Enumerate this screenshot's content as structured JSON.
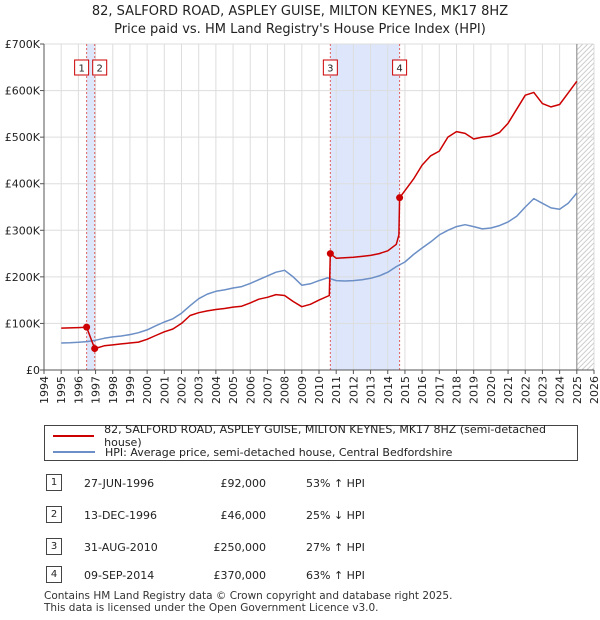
{
  "header": {
    "title": "82, SALFORD ROAD, ASPLEY GUISE, MILTON KEYNES, MK17 8HZ",
    "subtitle": "Price paid vs. HM Land Registry's House Price Index (HPI)"
  },
  "chart_data": {
    "type": "line",
    "title": "82, SALFORD ROAD, ASPLEY GUISE, MILTON KEYNES, MK17 8HZ",
    "subtitle": "Price paid vs. HM Land Registry's House Price Index (HPI)",
    "xlabel": "",
    "ylabel": "",
    "xlim": [
      1994,
      2026
    ],
    "ylim": [
      0,
      700000
    ],
    "y_ticks": [
      0,
      100000,
      200000,
      300000,
      400000,
      500000,
      600000,
      700000
    ],
    "y_tick_labels": [
      "£0",
      "£100K",
      "£200K",
      "£300K",
      "£400K",
      "£500K",
      "£600K",
      "£700K"
    ],
    "x_ticks": [
      1994,
      1995,
      1996,
      1997,
      1998,
      1999,
      2000,
      2001,
      2002,
      2003,
      2004,
      2005,
      2006,
      2007,
      2008,
      2009,
      2010,
      2011,
      2012,
      2013,
      2014,
      2015,
      2016,
      2017,
      2018,
      2019,
      2020,
      2021,
      2022,
      2023,
      2024,
      2025,
      2026
    ],
    "grid": true,
    "series": [
      {
        "name": "82, SALFORD ROAD, ASPLEY GUISE, MILTON KEYNES, MK17 8HZ (semi-detached house)",
        "color": "#cc0000",
        "x": [
          1995.0,
          1995.5,
          1996.0,
          1996.48,
          1996.95,
          1997.5,
          1998.0,
          1998.5,
          1999.0,
          1999.5,
          2000.0,
          2000.5,
          2001.0,
          2001.5,
          2002.0,
          2002.5,
          2003.0,
          2003.5,
          2004.0,
          2004.5,
          2005.0,
          2005.5,
          2006.0,
          2006.5,
          2007.0,
          2007.5,
          2008.0,
          2008.5,
          2009.0,
          2009.5,
          2010.0,
          2010.6,
          2010.66,
          2011.0,
          2011.5,
          2012.0,
          2012.5,
          2013.0,
          2013.5,
          2014.0,
          2014.5,
          2014.65,
          2014.69,
          2015.0,
          2015.5,
          2016.0,
          2016.5,
          2017.0,
          2017.5,
          2018.0,
          2018.5,
          2019.0,
          2019.5,
          2020.0,
          2020.5,
          2021.0,
          2021.5,
          2022.0,
          2022.5,
          2023.0,
          2023.5,
          2024.0,
          2024.5,
          2025.0
        ],
        "values": [
          90000,
          90500,
          91000,
          92000,
          46000,
          52000,
          54000,
          56000,
          58000,
          60000,
          66000,
          74000,
          82000,
          88000,
          100000,
          117000,
          123000,
          127000,
          130000,
          132000,
          135000,
          137000,
          144000,
          152000,
          156000,
          162000,
          160000,
          147000,
          136000,
          141000,
          150000,
          160000,
          250000,
          240000,
          241000,
          242000,
          244000,
          246000,
          250000,
          256000,
          270000,
          290000,
          370000,
          385000,
          410000,
          440000,
          460000,
          470000,
          500000,
          512000,
          508000,
          496000,
          500000,
          502000,
          510000,
          530000,
          560000,
          590000,
          596000,
          572000,
          565000,
          570000,
          595000,
          620000
        ]
      },
      {
        "name": "HPI: Average price, semi-detached house, Central Bedfordshire",
        "color": "#6b8fc6",
        "x": [
          1995.0,
          1995.5,
          1996.0,
          1996.5,
          1997.0,
          1997.5,
          1998.0,
          1998.5,
          1999.0,
          1999.5,
          2000.0,
          2000.5,
          2001.0,
          2001.5,
          2002.0,
          2002.5,
          2003.0,
          2003.5,
          2004.0,
          2004.5,
          2005.0,
          2005.5,
          2006.0,
          2006.5,
          2007.0,
          2007.5,
          2008.0,
          2008.5,
          2009.0,
          2009.5,
          2010.0,
          2010.5,
          2011.0,
          2011.5,
          2012.0,
          2012.5,
          2013.0,
          2013.5,
          2014.0,
          2014.5,
          2015.0,
          2015.5,
          2016.0,
          2016.5,
          2017.0,
          2017.5,
          2018.0,
          2018.5,
          2019.0,
          2019.5,
          2020.0,
          2020.5,
          2021.0,
          2021.5,
          2022.0,
          2022.5,
          2023.0,
          2023.5,
          2024.0,
          2024.5,
          2025.0
        ],
        "values": [
          58000,
          58500,
          59500,
          61000,
          64000,
          68000,
          71000,
          73000,
          76000,
          80000,
          86000,
          95000,
          103000,
          110000,
          122000,
          138000,
          153000,
          163000,
          169000,
          172000,
          176000,
          179000,
          186000,
          194000,
          202000,
          210000,
          214000,
          200000,
          182000,
          185000,
          192000,
          198000,
          192000,
          191000,
          192000,
          194000,
          197000,
          202000,
          210000,
          222000,
          232000,
          248000,
          262000,
          275000,
          290000,
          300000,
          308000,
          312000,
          308000,
          303000,
          305000,
          310000,
          318000,
          330000,
          350000,
          368000,
          358000,
          348000,
          345000,
          358000,
          380000
        ]
      }
    ],
    "transactions": [
      {
        "label": "1",
        "x": 1996.48,
        "y": 92000
      },
      {
        "label": "2",
        "x": 1996.95,
        "y": 46000
      },
      {
        "label": "3",
        "x": 2010.66,
        "y": 250000
      },
      {
        "label": "4",
        "x": 2014.69,
        "y": 370000
      }
    ],
    "shaded_ranges": [
      [
        1996.48,
        1996.95
      ],
      [
        2010.66,
        2014.69
      ]
    ],
    "forecast_start": 2025.0
  },
  "legend": {
    "items": [
      {
        "label": "82, SALFORD ROAD, ASPLEY GUISE, MILTON KEYNES, MK17 8HZ (semi-detached house)",
        "color": "#cc0000"
      },
      {
        "label": "HPI: Average price, semi-detached house, Central Bedfordshire",
        "color": "#6b8fc6"
      }
    ]
  },
  "transactions_table": [
    {
      "num": "1",
      "date": "27-JUN-1996",
      "price": "£92,000",
      "hpi": "53% ↑ HPI"
    },
    {
      "num": "2",
      "date": "13-DEC-1996",
      "price": "£46,000",
      "hpi": "25% ↓ HPI"
    },
    {
      "num": "3",
      "date": "31-AUG-2010",
      "price": "£250,000",
      "hpi": "27% ↑ HPI"
    },
    {
      "num": "4",
      "date": "09-SEP-2014",
      "price": "£370,000",
      "hpi": "63% ↑ HPI"
    }
  ],
  "footer": {
    "line1": "Contains HM Land Registry data © Crown copyright and database right 2025.",
    "line2": "This data is licensed under the Open Government Licence v3.0."
  }
}
